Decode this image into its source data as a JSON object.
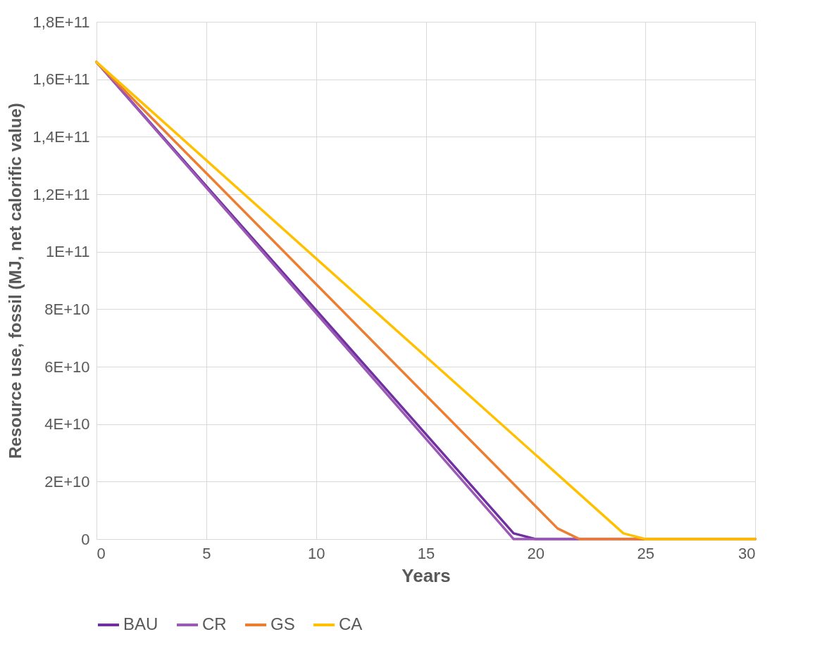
{
  "chart_data": {
    "type": "line",
    "xlabel": "Years",
    "ylabel": "Resource use, fossil (MJ, net calorific value)",
    "xlim": [
      0,
      30
    ],
    "xticks": [
      0,
      5,
      10,
      15,
      20,
      25,
      30
    ],
    "ylim": [
      0,
      180000000000
    ],
    "yticks": [
      {
        "value": 0,
        "label": "0"
      },
      {
        "value": 20000000000,
        "label": "2E+10"
      },
      {
        "value": 40000000000,
        "label": "4E+10"
      },
      {
        "value": 60000000000,
        "label": "6E+10"
      },
      {
        "value": 80000000000,
        "label": "8E+10"
      },
      {
        "value": 100000000000,
        "label": "1E+11"
      },
      {
        "value": 120000000000,
        "label": "1,2E+11"
      },
      {
        "value": 140000000000,
        "label": "1,4E+11"
      },
      {
        "value": 160000000000,
        "label": "1,6E+11"
      },
      {
        "value": 180000000000,
        "label": "1,8E+11"
      }
    ],
    "grid": true,
    "legend": "bottom",
    "marker": "none",
    "line_style": "solid",
    "series": [
      {
        "name": "BAU",
        "color": "#7030a0",
        "x": [
          0,
          19,
          20,
          30
        ],
        "values": [
          166000000000,
          2000000000,
          0,
          0
        ]
      },
      {
        "name": "CR",
        "color": "#9b59b6",
        "x": [
          0,
          19,
          30
        ],
        "values": [
          166000000000,
          0,
          0
        ]
      },
      {
        "name": "GS",
        "color": "#ed7d31",
        "x": [
          0,
          21,
          22,
          30
        ],
        "values": [
          166000000000,
          3700000000,
          0,
          0
        ]
      },
      {
        "name": "CA",
        "color": "#ffc000",
        "x": [
          0,
          24,
          25,
          30
        ],
        "values": [
          166000000000,
          2000000000,
          0,
          0
        ]
      }
    ]
  }
}
